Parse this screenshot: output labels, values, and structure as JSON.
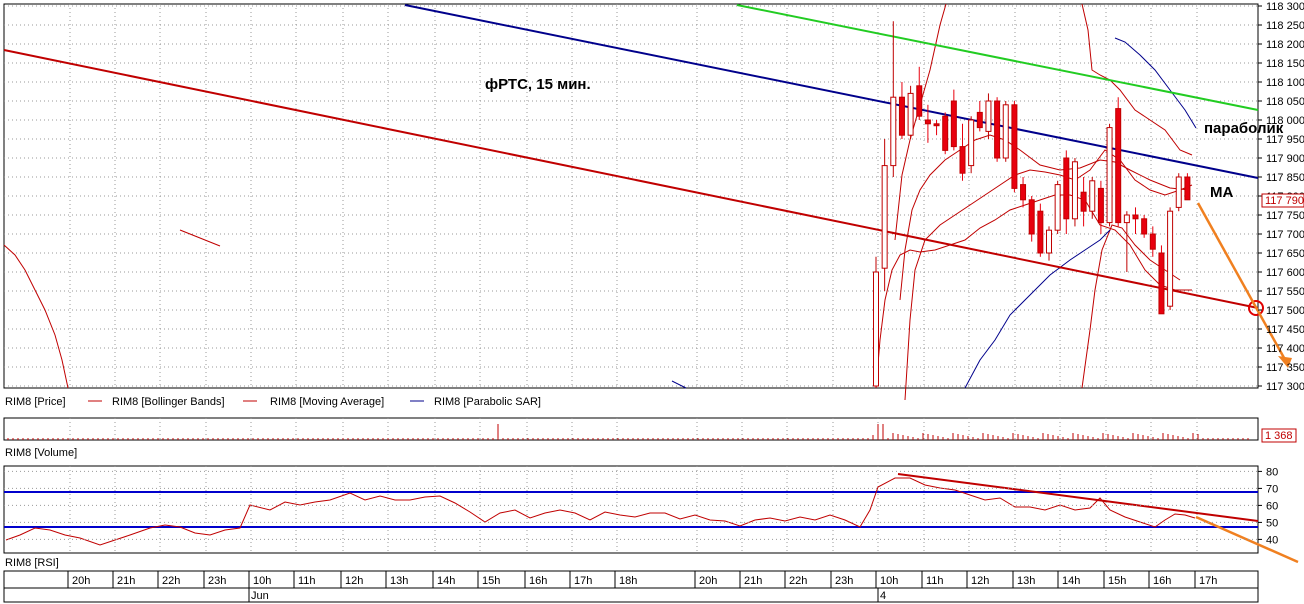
{
  "annotations": {
    "title": "фРТС, 15 мин.",
    "parabolic": "параболик",
    "ma": "МА"
  },
  "legend": {
    "price": "RIM8 [Price]",
    "bollinger": "RIM8 [Bollinger Bands]",
    "moving_average": "RIM8 [Moving Average]",
    "parabolic_sar": "RIM8 [Parabolic SAR]"
  },
  "volume": {
    "label": "RIM8 [Volume]",
    "last_value": "1 368"
  },
  "rsi": {
    "label": "RIM8 [RSI]",
    "levels": [
      "80",
      "70",
      "60",
      "50",
      "40"
    ]
  },
  "time_axis": {
    "hours": [
      "20h",
      "21h",
      "22h",
      "23h",
      "10h",
      "11h",
      "12h",
      "13h",
      "14h",
      "15h",
      "16h",
      "17h",
      "18h",
      "20h",
      "21h",
      "22h",
      "23h",
      "10h",
      "11h",
      "12h",
      "13h",
      "14h",
      "15h",
      "16h",
      "17h"
    ],
    "dates": [
      "Jun",
      "4"
    ]
  },
  "colors": {
    "bull": "#ffffff",
    "bear": "#e8000e",
    "bb": "#c00000",
    "trend_red": "#c00000",
    "trend_blue": "#00008b",
    "trend_green": "#22cc22",
    "arrow": "#f08020",
    "rsi_band": "#0000cc"
  },
  "chart_data": {
    "type": "candlestick",
    "price_axis": {
      "ticks": [
        "118 300",
        "118 250",
        "118 200",
        "118 150",
        "118 100",
        "118 050",
        "118 000",
        "117 950",
        "117 900",
        "117 850",
        "117 800",
        "117 750",
        "117 700",
        "117 650",
        "117 600",
        "117 550",
        "117 500",
        "117 450",
        "117 400",
        "117 350",
        "117 300"
      ],
      "current_price": "117 790",
      "range": [
        117300,
        118300
      ]
    },
    "candles_session_2": [
      {
        "o": 117300,
        "h": 117640,
        "l": 117300,
        "c": 117600
      },
      {
        "o": 117610,
        "h": 117950,
        "l": 117550,
        "c": 117880
      },
      {
        "o": 117880,
        "h": 118260,
        "l": 117850,
        "c": 118060
      },
      {
        "o": 118060,
        "h": 118100,
        "l": 117950,
        "c": 117960
      },
      {
        "o": 117960,
        "h": 118090,
        "l": 117950,
        "c": 118070
      },
      {
        "o": 118090,
        "h": 118140,
        "l": 118000,
        "c": 118010
      },
      {
        "o": 118000,
        "h": 118040,
        "l": 117940,
        "c": 117990
      },
      {
        "o": 117990,
        "h": 118000,
        "l": 117960,
        "c": 117985
      },
      {
        "o": 118010,
        "h": 118020,
        "l": 117910,
        "c": 117920
      },
      {
        "o": 118050,
        "h": 118080,
        "l": 117920,
        "c": 117930
      },
      {
        "o": 117930,
        "h": 117990,
        "l": 117840,
        "c": 117860
      },
      {
        "o": 117880,
        "h": 118010,
        "l": 117860,
        "c": 118000
      },
      {
        "o": 118020,
        "h": 118050,
        "l": 117970,
        "c": 117980
      },
      {
        "o": 117970,
        "h": 118070,
        "l": 117950,
        "c": 118050
      },
      {
        "o": 118050,
        "h": 118060,
        "l": 117890,
        "c": 117900
      },
      {
        "o": 117900,
        "h": 118050,
        "l": 117890,
        "c": 118040
      },
      {
        "o": 118040,
        "h": 118050,
        "l": 117810,
        "c": 117820
      },
      {
        "o": 117830,
        "h": 117850,
        "l": 117770,
        "c": 117790
      },
      {
        "o": 117790,
        "h": 117800,
        "l": 117680,
        "c": 117700
      },
      {
        "o": 117760,
        "h": 117780,
        "l": 117640,
        "c": 117650
      },
      {
        "o": 117650,
        "h": 117720,
        "l": 117630,
        "c": 117710
      },
      {
        "o": 117710,
        "h": 117840,
        "l": 117700,
        "c": 117830
      },
      {
        "o": 117900,
        "h": 117920,
        "l": 117700,
        "c": 117740
      },
      {
        "o": 117740,
        "h": 117900,
        "l": 117720,
        "c": 117890
      },
      {
        "o": 117810,
        "h": 117850,
        "l": 117720,
        "c": 117760
      },
      {
        "o": 117760,
        "h": 117850,
        "l": 117740,
        "c": 117840
      },
      {
        "o": 117820,
        "h": 117840,
        "l": 117700,
        "c": 117730
      },
      {
        "o": 117730,
        "h": 117990,
        "l": 117720,
        "c": 117980
      },
      {
        "o": 118030,
        "h": 118060,
        "l": 117720,
        "c": 117730
      },
      {
        "o": 117730,
        "h": 117760,
        "l": 117600,
        "c": 117750
      },
      {
        "o": 117750,
        "h": 117770,
        "l": 117700,
        "c": 117740
      },
      {
        "o": 117740,
        "h": 117750,
        "l": 117690,
        "c": 117700
      },
      {
        "o": 117700,
        "h": 117720,
        "l": 117640,
        "c": 117660
      },
      {
        "o": 117650,
        "h": 117670,
        "l": 117490,
        "c": 117490
      },
      {
        "o": 117510,
        "h": 117770,
        "l": 117500,
        "c": 117760
      },
      {
        "o": 117770,
        "h": 117860,
        "l": 117760,
        "c": 117850
      },
      {
        "o": 117850,
        "h": 117860,
        "l": 117790,
        "c": 117790
      }
    ]
  }
}
